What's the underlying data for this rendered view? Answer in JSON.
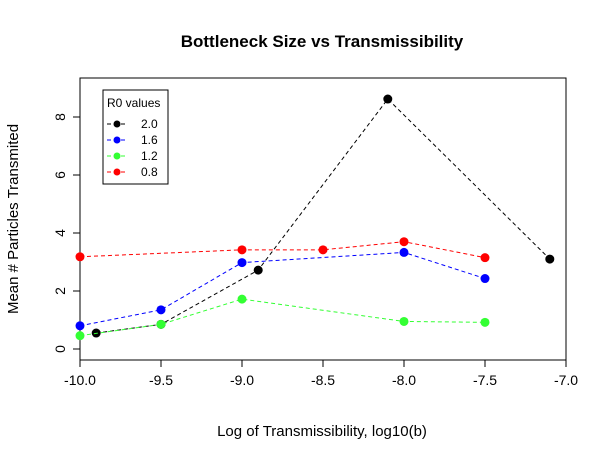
{
  "chart_data": {
    "type": "line",
    "title": "Bottleneck Size vs Transmissibility",
    "xlabel": "Log of Transmissibility, log10(b)",
    "ylabel": "Mean # Particles Transmited",
    "xlim": [
      -10.0,
      -7.0
    ],
    "ylim": [
      0,
      9
    ],
    "xticks": [
      "-10.0",
      "-9.5",
      "-9.0",
      "-8.5",
      "-8.0",
      "-7.5",
      "-7.0"
    ],
    "yticks": [
      "0",
      "2",
      "4",
      "6",
      "8"
    ],
    "grid": false,
    "legend_title": "R0 values",
    "legend_position": "top-left",
    "series": [
      {
        "name": "2.0",
        "color": "#000000",
        "points": [
          [
            -9.9,
            0.55
          ],
          [
            -9.5,
            0.85
          ],
          [
            -8.9,
            2.72
          ],
          [
            -8.1,
            8.62
          ],
          [
            -7.1,
            3.1
          ]
        ]
      },
      {
        "name": "1.6",
        "color": "#0000ff",
        "points": [
          [
            -10.0,
            0.8
          ],
          [
            -9.5,
            1.35
          ],
          [
            -9.0,
            2.98
          ],
          [
            -8.0,
            3.33
          ],
          [
            -7.5,
            2.43
          ]
        ]
      },
      {
        "name": "1.2",
        "color": "#33ff33",
        "points": [
          [
            -10.0,
            0.46
          ],
          [
            -9.5,
            0.85
          ],
          [
            -9.0,
            1.72
          ],
          [
            -8.0,
            0.95
          ],
          [
            -7.5,
            0.92
          ]
        ]
      },
      {
        "name": "0.8",
        "color": "#ff0000",
        "points": [
          [
            -10.0,
            3.18
          ],
          [
            -9.0,
            3.42
          ],
          [
            -8.5,
            3.42
          ],
          [
            -8.0,
            3.7
          ],
          [
            -7.5,
            3.15
          ]
        ]
      }
    ]
  }
}
